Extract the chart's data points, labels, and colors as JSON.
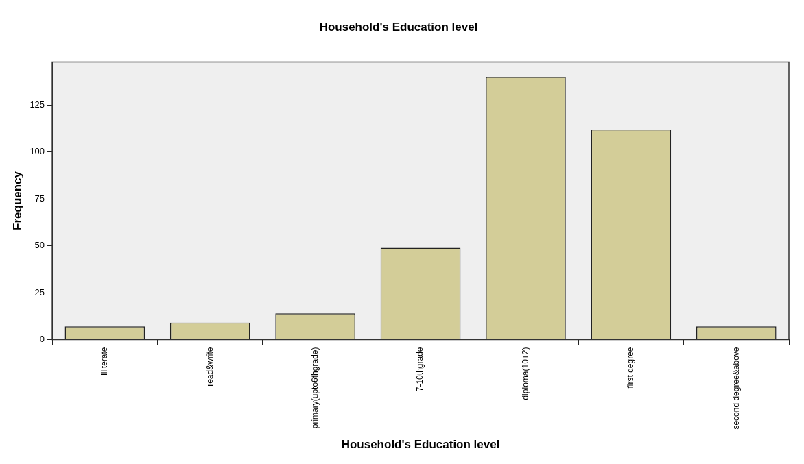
{
  "chart_data": {
    "type": "bar",
    "title": "Household's Education level",
    "xlabel": "Household's Education level",
    "ylabel": "Frequency",
    "categories": [
      "illiterate",
      "read&write",
      "primary(upto6thgrade)",
      "7-10thgrade",
      "diploma(10+2)",
      "first degree",
      "second degree&above"
    ],
    "values": [
      7,
      9,
      14,
      49,
      140,
      112,
      7
    ],
    "color": "#d3cd98",
    "ylim": [
      0,
      148
    ],
    "yticks": [
      0,
      25,
      50,
      75,
      100,
      125
    ]
  }
}
